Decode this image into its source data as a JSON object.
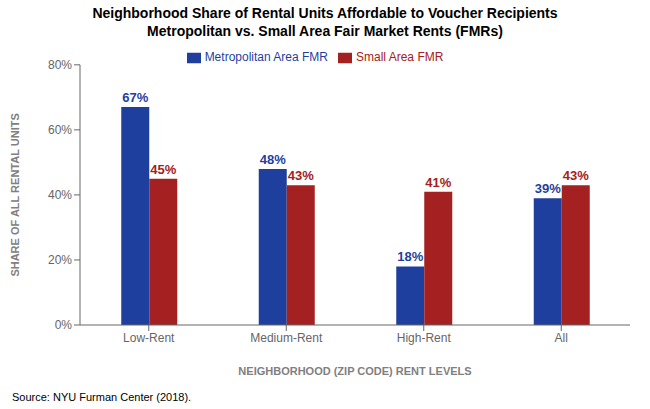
{
  "chart_data": {
    "type": "bar",
    "title": "Neighborhood Share of Rental Units Affordable to Voucher Recipients",
    "subtitle": "Metropolitan vs. Small Area Fair Market Rents (FMRs)",
    "categories": [
      "Low-Rent",
      "Medium-Rent",
      "High-Rent",
      "All"
    ],
    "series": [
      {
        "name": "Metropolitan Area FMR",
        "color": "#1F3F9F",
        "values": [
          0.67,
          0.48,
          0.18,
          0.39
        ],
        "value_labels": [
          "67%",
          "48%",
          "18%",
          "39%"
        ]
      },
      {
        "name": "Small Area FMR",
        "color": "#A52020",
        "values": [
          0.45,
          0.43,
          0.41,
          0.43
        ],
        "value_labels": [
          "45%",
          "43%",
          "41%",
          "43%"
        ]
      }
    ],
    "xlabel": "NEIGHBORHOOD (ZIP CODE) RENT LEVELS",
    "ylabel": "SHARE OF ALL RENTAL UNITS",
    "ylim": [
      0,
      0.8
    ],
    "yticks": [
      {
        "value": 0.0,
        "label": "0%"
      },
      {
        "value": 0.2,
        "label": "20%"
      },
      {
        "value": 0.4,
        "label": "40%"
      },
      {
        "value": 0.6,
        "label": "60%"
      },
      {
        "value": 0.8,
        "label": "80%"
      }
    ],
    "data_labels": true,
    "grid": false,
    "legend": "top",
    "annotations": [
      "Source: NYU Furman Center (2018)."
    ]
  }
}
